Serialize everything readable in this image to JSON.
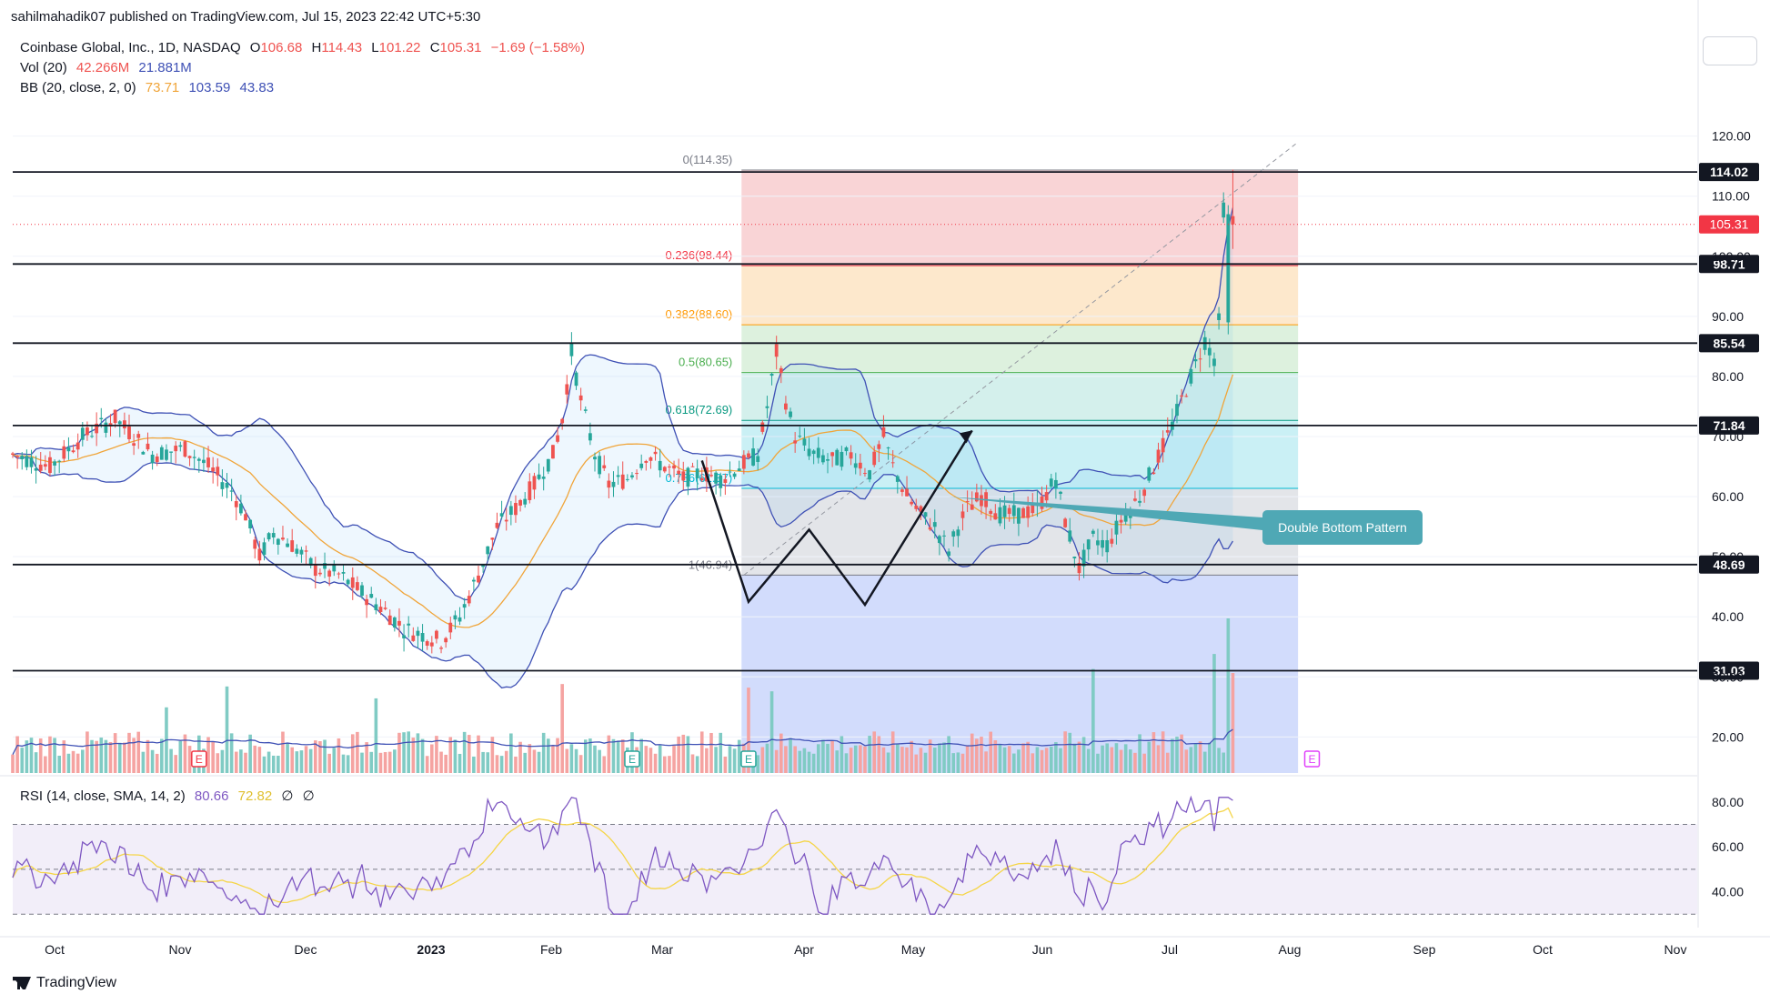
{
  "publisher": "sahilmahadik07 published on TradingView.com, Jul 15, 2023 22:42 UTC+5:30",
  "header": {
    "symbol": "Coinbase Global, Inc., 1D, NASDAQ",
    "o_label": "O",
    "o_value": "106.68",
    "h_label": "H",
    "h_value": "114.43",
    "l_label": "L",
    "l_value": "101.22",
    "c_label": "C",
    "c_value": "105.31",
    "change": "−1.69 (−1.58%)",
    "vol_label": "Vol (20)",
    "vol_value1": "42.266M",
    "vol_value2": "21.881M",
    "bb_label": "BB (20, close, 2, 0)",
    "bb_basis": "73.71",
    "bb_upper": "103.59",
    "bb_lower": "43.83",
    "rsi_label": "RSI (14, close, SMA, 14, 2)",
    "rsi_value": "80.66",
    "rsi_sma": "72.82",
    "rsi_x1": "∅",
    "rsi_x2": "∅"
  },
  "logo_text": "TradingView",
  "colors": {
    "up": "#26a69a",
    "down": "#ef5350",
    "bb": "#3f51b5",
    "basis": "#f0a53a",
    "rsi": "#7e57c2",
    "rsi_sma": "#f5d547",
    "annotation": "#4fa8b5",
    "price_tag": "#f23645"
  },
  "chart_data": [
    {
      "type": "candlestick",
      "title": "Coinbase Global, Inc., 1D, NASDAQ",
      "ylim": [
        14,
        126
      ],
      "y_ticks": [
        "120.00",
        "110.00",
        "100.00",
        "90.00",
        "80.00",
        "70.00",
        "60.00",
        "50.00",
        "40.00",
        "30.00",
        "20.00"
      ],
      "x_ticks": [
        "Oct",
        "Nov",
        "Dec",
        "2023",
        "Feb",
        "Mar",
        "Apr",
        "May",
        "Jun",
        "Jul",
        "Aug",
        "Sep",
        "Oct",
        "Nov"
      ],
      "close_path": [
        [
          0,
          67
        ],
        [
          8,
          65
        ],
        [
          15,
          70
        ],
        [
          22,
          73
        ],
        [
          30,
          67
        ],
        [
          37,
          68
        ],
        [
          42,
          65
        ],
        [
          47,
          61
        ],
        [
          50,
          57
        ],
        [
          53,
          50
        ],
        [
          56,
          54
        ],
        [
          60,
          52
        ],
        [
          65,
          48
        ],
        [
          70,
          47
        ],
        [
          75,
          44
        ],
        [
          80,
          41
        ],
        [
          84,
          38
        ],
        [
          88,
          37
        ],
        [
          92,
          36
        ],
        [
          96,
          40
        ],
        [
          100,
          47
        ],
        [
          104,
          55
        ],
        [
          108,
          58
        ],
        [
          112,
          62
        ],
        [
          116,
          67
        ],
        [
          118,
          73
        ],
        [
          120,
          84
        ],
        [
          122,
          76
        ],
        [
          125,
          67
        ],
        [
          128,
          62
        ],
        [
          132,
          63
        ],
        [
          136,
          67
        ],
        [
          140,
          65
        ],
        [
          144,
          63
        ],
        [
          148,
          64
        ],
        [
          152,
          63
        ],
        [
          156,
          65
        ],
        [
          160,
          67
        ],
        [
          162,
          75
        ],
        [
          164,
          84
        ],
        [
          166,
          76
        ],
        [
          168,
          70
        ],
        [
          172,
          67
        ],
        [
          176,
          66
        ],
        [
          180,
          67
        ],
        [
          184,
          64
        ],
        [
          187,
          70
        ],
        [
          189,
          65
        ],
        [
          192,
          60
        ],
        [
          195,
          57
        ],
        [
          198,
          55
        ],
        [
          201,
          51
        ],
        [
          203,
          55
        ],
        [
          205,
          58
        ],
        [
          208,
          60
        ],
        [
          212,
          57
        ],
        [
          216,
          57
        ],
        [
          220,
          58
        ],
        [
          224,
          63
        ],
        [
          226,
          56
        ],
        [
          229,
          48
        ],
        [
          232,
          53
        ],
        [
          235,
          52
        ],
        [
          238,
          56
        ],
        [
          242,
          60
        ],
        [
          245,
          65
        ],
        [
          248,
          70
        ],
        [
          252,
          78
        ],
        [
          256,
          86
        ],
        [
          258,
          83
        ],
        [
          259,
          89
        ],
        [
          260,
          108
        ],
        [
          262,
          105.31
        ]
      ],
      "levels": [
        114.02,
        98.71,
        85.54,
        71.84,
        48.69,
        31.03
      ],
      "fib": [
        {
          "label": "0(114.35)",
          "value": 114.35
        },
        {
          "label": "0.236(98.44)",
          "value": 98.44
        },
        {
          "label": "0.382(88.60)",
          "value": 88.6
        },
        {
          "label": "0.5(80.65)",
          "value": 80.65
        },
        {
          "label": "0.618(72.69)",
          "value": 72.69
        },
        {
          "label": "0.786(61.37)",
          "value": 61.37
        },
        {
          "label": "1(46.94)",
          "value": 46.94
        }
      ],
      "current_price": 105.31,
      "annotation": "Double Bottom Pattern",
      "earnings_markers": [
        "E",
        "E",
        "E",
        "E"
      ]
    },
    {
      "type": "line",
      "title": "RSI (14, close, SMA, 14, 2)",
      "ylim": [
        24,
        88
      ],
      "y_ticks": [
        "80.00",
        "60.00",
        "40.00"
      ],
      "bands": [
        30,
        50,
        70
      ]
    }
  ]
}
